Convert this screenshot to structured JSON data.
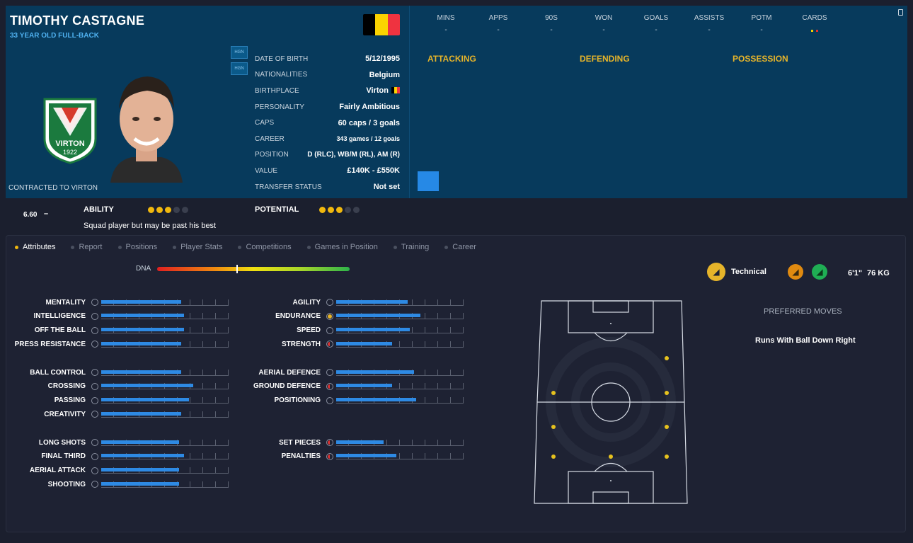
{
  "player": {
    "name": "TIMOTHY CASTAGNE",
    "subtitle": "33 YEAR OLD FULL-BACK",
    "contract": "CONTRACTED TO VIRTON",
    "club_crest_text": {
      "name": "VIRTON",
      "year": "1922"
    }
  },
  "badges": [
    "HGN",
    "HGN"
  ],
  "info": [
    {
      "label": "DATE OF BIRTH",
      "value": "5/12/1995"
    },
    {
      "label": "NATIONALITIES",
      "value": "Belgium"
    },
    {
      "label": "BIRTHPLACE",
      "value": "Virton"
    },
    {
      "label": "PERSONALITY",
      "value": "Fairly Ambitious"
    },
    {
      "label": "CAPS",
      "value": "60 caps / 3 goals"
    },
    {
      "label": "CAREER",
      "value": "343 games / 12 goals"
    },
    {
      "label": "POSITION",
      "value": "D (RLC), WB/M (RL), AM (R)"
    },
    {
      "label": "VALUE",
      "value": "£140K - £550K"
    },
    {
      "label": "TRANSFER STATUS",
      "value": "Not set"
    }
  ],
  "stats": [
    {
      "label": "MINS",
      "value": "-"
    },
    {
      "label": "APPS",
      "value": "-"
    },
    {
      "label": "90S",
      "value": "-"
    },
    {
      "label": "WON",
      "value": "-"
    },
    {
      "label": "GOALS",
      "value": "-"
    },
    {
      "label": "ASSISTS",
      "value": "-"
    },
    {
      "label": "POTM",
      "value": "-"
    },
    {
      "label": "CARDS",
      "value": ""
    }
  ],
  "categories": [
    "ATTACKING",
    "DEFENDING",
    "POSSESSION"
  ],
  "rating": "6.60",
  "rating_trend": "–",
  "ability": {
    "label": "ABILITY",
    "stars": 3,
    "max": 5,
    "desc": "Squad player but may be past his best"
  },
  "potential": {
    "label": "POTENTIAL",
    "stars": 3,
    "max": 5
  },
  "tabs": [
    "Attributes",
    "Report",
    "Positions",
    "Player Stats",
    "Competitions",
    "Games in Position",
    "Training",
    "Career"
  ],
  "active_tab": 0,
  "dna": {
    "label": "DNA",
    "marker": 0.41
  },
  "attributes_left": [
    {
      "group": 0,
      "label": "MENTALITY",
      "value": 0.63
    },
    {
      "group": 0,
      "label": "INTELLIGENCE",
      "value": 0.65
    },
    {
      "group": 0,
      "label": "OFF THE BALL",
      "value": 0.65
    },
    {
      "group": 0,
      "label": "PRESS RESISTANCE",
      "value": 0.63
    },
    {
      "group": 1,
      "label": "BALL CONTROL",
      "value": 0.63
    },
    {
      "group": 1,
      "label": "CROSSING",
      "value": 0.72
    },
    {
      "group": 1,
      "label": "PASSING",
      "value": 0.69
    },
    {
      "group": 1,
      "label": "CREATIVITY",
      "value": 0.63
    },
    {
      "group": 2,
      "label": "LONG SHOTS",
      "value": 0.61
    },
    {
      "group": 2,
      "label": "FINAL THIRD",
      "value": 0.65
    },
    {
      "group": 2,
      "label": "AERIAL ATTACK",
      "value": 0.61
    },
    {
      "group": 2,
      "label": "SHOOTING",
      "value": 0.61
    }
  ],
  "attributes_right": [
    {
      "group": 0,
      "label": "AGILITY",
      "value": 0.56,
      "icon": "neutral"
    },
    {
      "group": 0,
      "label": "ENDURANCE",
      "value": 0.66,
      "icon": "warm"
    },
    {
      "group": 0,
      "label": "SPEED",
      "value": 0.58,
      "icon": "neutral"
    },
    {
      "group": 0,
      "label": "STRENGTH",
      "value": 0.44,
      "icon": "cold"
    },
    {
      "group": 1,
      "label": "AERIAL DEFENCE",
      "value": 0.61,
      "icon": "neutral"
    },
    {
      "group": 1,
      "label": "GROUND DEFENCE",
      "value": 0.44,
      "icon": "cold"
    },
    {
      "group": 1,
      "label": "POSITIONING",
      "value": 0.63,
      "icon": "neutral"
    },
    {
      "group": 2,
      "label": "SET PIECES",
      "value": 0.37,
      "icon": "cold"
    },
    {
      "group": 2,
      "label": "PENALTIES",
      "value": 0.47,
      "icon": "cold"
    }
  ],
  "trait": {
    "label": "Technical"
  },
  "height": "6'1\"",
  "weight": "76 KG",
  "preferred_moves": {
    "title": "PREFERRED MOVES",
    "items": [
      "Runs With Ball Down Right"
    ]
  },
  "colors": {
    "header_bg": "#073a5c",
    "accent": "#e6b42a",
    "bar": "#2e8ae4",
    "flag": [
      "#000000",
      "#fbd300",
      "#ef3340"
    ]
  }
}
